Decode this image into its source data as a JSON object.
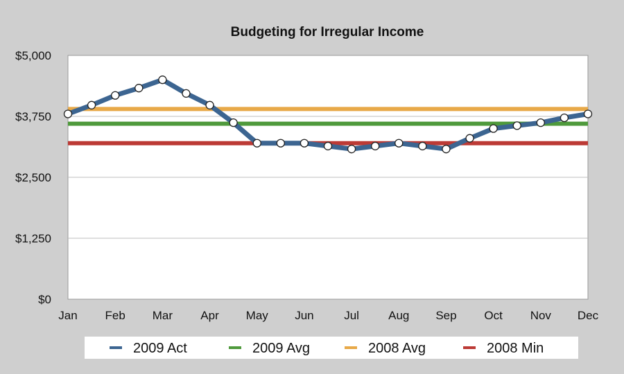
{
  "chart_data": {
    "type": "line",
    "title": "Budgeting for Irregular Income",
    "xlabel": "",
    "ylabel": "",
    "x_ticks": [
      "Jan",
      "Feb",
      "Mar",
      "Apr",
      "May",
      "Jun",
      "Jul",
      "Aug",
      "Sep",
      "Oct",
      "Nov",
      "Dec"
    ],
    "y_ticks": [
      {
        "value": 0,
        "label": "$0"
      },
      {
        "value": 1250,
        "label": "$1,250"
      },
      {
        "value": 2500,
        "label": "$2,500"
      },
      {
        "value": 3750,
        "label": "$3,750"
      },
      {
        "value": 5000,
        "label": "$5,000"
      }
    ],
    "ylim": [
      0,
      5000
    ],
    "grid": true,
    "legend_position": "bottom",
    "series": [
      {
        "name": "2009 Act",
        "color": "#3c6591",
        "kind": "line-with-markers",
        "x": [
          0,
          0.5,
          1,
          1.5,
          2,
          2.5,
          3,
          3.5,
          4,
          4.5,
          5,
          5.5,
          6,
          6.5,
          7,
          7.5,
          8,
          8.5,
          9,
          9.5,
          10,
          10.5,
          11
        ],
        "values": [
          3800,
          3980,
          4180,
          4330,
          4500,
          4220,
          3980,
          3620,
          3200,
          3200,
          3200,
          3140,
          3080,
          3140,
          3200,
          3140,
          3080,
          3300,
          3500,
          3560,
          3620,
          3720,
          3800
        ]
      },
      {
        "name": "2009 Avg",
        "color": "#4f9a3c",
        "kind": "constant",
        "x": [
          0,
          11
        ],
        "values": [
          3600,
          3600
        ]
      },
      {
        "name": "2008 Avg",
        "color": "#e8a948",
        "kind": "constant",
        "x": [
          0,
          11
        ],
        "values": [
          3900,
          3900
        ]
      },
      {
        "name": "2008 Min",
        "color": "#bc3a35",
        "kind": "constant",
        "x": [
          0,
          11
        ],
        "values": [
          3200,
          3200
        ]
      }
    ]
  }
}
